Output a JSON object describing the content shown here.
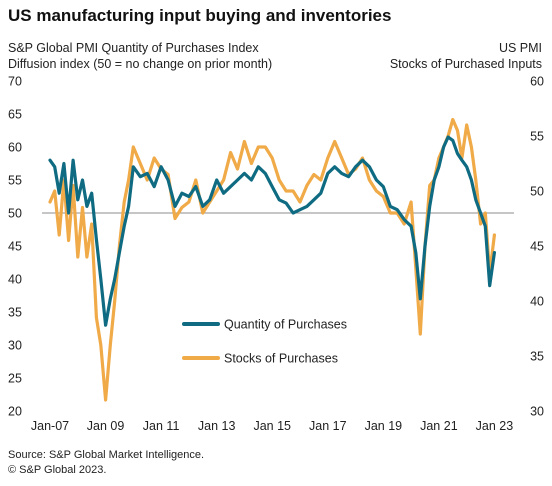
{
  "header": {
    "title": "US manufacturing input buying and inventories",
    "left_line1": "S&P Global PMI Quantity of Purchases Index",
    "left_line2": "Diffusion index (50 = no change on prior month)",
    "right_line1": "US PMI",
    "right_line2": "Stocks of Purchased Inputs"
  },
  "footer": {
    "source": "Source: S&P Global Market Intelligence.",
    "copyright": "© S&P Global 2023."
  },
  "colors": {
    "quantity": "#0f6b82",
    "stocks": "#f0aa48",
    "reference": "#8c8c8c",
    "text": "#222222"
  },
  "chart_data": {
    "type": "line",
    "title": "US manufacturing input buying and inventories",
    "xlabel": "",
    "ylabel_left": "S&P Global PMI Quantity of Purchases Index",
    "ylabel_right": "US PMI Stocks of Purchased Inputs",
    "x_ticks": [
      "Jan-07",
      "Jan 09",
      "Jan 11",
      "Jan 13",
      "Jan 15",
      "Jan 17",
      "Jan 19",
      "Jan 21",
      "Jan 23"
    ],
    "x_tick_years": [
      2007,
      2009,
      2011,
      2013,
      2015,
      2017,
      2019,
      2021,
      2023
    ],
    "xlim": [
      2007.0,
      2023.2
    ],
    "ylim_left": [
      20,
      70
    ],
    "ylim_right": [
      30,
      60
    ],
    "y_ticks_left": [
      20,
      25,
      30,
      35,
      40,
      45,
      50,
      55,
      60,
      65,
      70
    ],
    "y_ticks_right": [
      30,
      35,
      40,
      45,
      50,
      55,
      60
    ],
    "reference_line": 50,
    "grid": false,
    "legend_position": "lower-center",
    "series": [
      {
        "name": "Quantity of Purchases",
        "axis": "left",
        "x": [
          2007.0,
          2007.17,
          2007.33,
          2007.5,
          2007.67,
          2007.83,
          2008.0,
          2008.17,
          2008.33,
          2008.5,
          2008.67,
          2008.83,
          2009.0,
          2009.17,
          2009.33,
          2009.5,
          2009.67,
          2009.83,
          2010.0,
          2010.25,
          2010.5,
          2010.75,
          2011.0,
          2011.25,
          2011.5,
          2011.75,
          2012.0,
          2012.25,
          2012.5,
          2012.75,
          2013.0,
          2013.25,
          2013.5,
          2013.75,
          2014.0,
          2014.25,
          2014.5,
          2014.75,
          2015.0,
          2015.25,
          2015.5,
          2015.75,
          2016.0,
          2016.25,
          2016.5,
          2016.75,
          2017.0,
          2017.25,
          2017.5,
          2017.75,
          2018.0,
          2018.25,
          2018.5,
          2018.75,
          2019.0,
          2019.25,
          2019.5,
          2019.75,
          2020.0,
          2020.17,
          2020.33,
          2020.5,
          2020.67,
          2020.83,
          2021.0,
          2021.17,
          2021.33,
          2021.5,
          2021.67,
          2021.83,
          2022.0,
          2022.17,
          2022.33,
          2022.5,
          2022.67,
          2022.83,
          2023.0
        ],
        "values": [
          58.0,
          57.0,
          53.0,
          57.5,
          50.0,
          58.0,
          52.0,
          55.0,
          51.0,
          53.0,
          46.0,
          40.0,
          33.0,
          37.0,
          40.0,
          44.0,
          48.0,
          51.0,
          57.0,
          55.5,
          56.0,
          54.0,
          57.0,
          55.0,
          51.0,
          53.0,
          52.5,
          54.0,
          51.0,
          52.0,
          55.0,
          53.0,
          54.0,
          55.0,
          56.0,
          55.0,
          57.0,
          56.0,
          54.0,
          52.0,
          51.5,
          50.0,
          50.5,
          51.0,
          52.0,
          53.0,
          56.0,
          57.0,
          56.0,
          55.5,
          57.0,
          58.0,
          57.0,
          55.0,
          54.0,
          51.0,
          50.5,
          49.0,
          48.0,
          44.0,
          37.0,
          45.0,
          51.0,
          55.0,
          57.0,
          60.0,
          61.5,
          61.0,
          59.0,
          58.0,
          57.0,
          55.0,
          52.0,
          50.0,
          48.0,
          39.0,
          44.0
        ]
      },
      {
        "name": "Stocks of Purchases",
        "axis": "right",
        "x": [
          2007.0,
          2007.17,
          2007.33,
          2007.5,
          2007.67,
          2007.83,
          2008.0,
          2008.17,
          2008.33,
          2008.5,
          2008.67,
          2008.83,
          2009.0,
          2009.17,
          2009.33,
          2009.5,
          2009.67,
          2009.83,
          2010.0,
          2010.25,
          2010.5,
          2010.75,
          2011.0,
          2011.25,
          2011.5,
          2011.75,
          2012.0,
          2012.25,
          2012.5,
          2012.75,
          2013.0,
          2013.25,
          2013.5,
          2013.75,
          2014.0,
          2014.25,
          2014.5,
          2014.75,
          2015.0,
          2015.25,
          2015.5,
          2015.75,
          2016.0,
          2016.25,
          2016.5,
          2016.75,
          2017.0,
          2017.25,
          2017.5,
          2017.75,
          2018.0,
          2018.25,
          2018.5,
          2018.75,
          2019.0,
          2019.25,
          2019.5,
          2019.75,
          2020.0,
          2020.17,
          2020.33,
          2020.5,
          2020.67,
          2020.83,
          2021.0,
          2021.17,
          2021.33,
          2021.5,
          2021.67,
          2021.83,
          2022.0,
          2022.17,
          2022.33,
          2022.5,
          2022.67,
          2022.83,
          2023.0
        ],
        "values": [
          49.0,
          50.0,
          46.0,
          51.0,
          45.5,
          50.5,
          44.0,
          48.5,
          44.0,
          47.0,
          38.5,
          36.0,
          31.0,
          36.0,
          40.0,
          45.0,
          49.0,
          51.0,
          54.0,
          52.5,
          51.0,
          53.0,
          52.0,
          51.5,
          47.5,
          48.5,
          49.0,
          51.0,
          48.0,
          49.0,
          50.0,
          51.0,
          53.5,
          52.0,
          54.5,
          52.5,
          54.0,
          54.0,
          53.0,
          51.0,
          50.0,
          50.0,
          49.0,
          50.5,
          51.5,
          51.0,
          53.0,
          54.5,
          53.0,
          51.5,
          52.0,
          53.0,
          51.0,
          50.0,
          49.5,
          48.0,
          48.0,
          47.0,
          49.0,
          43.0,
          37.0,
          45.0,
          50.5,
          51.0,
          53.0,
          54.0,
          55.0,
          56.5,
          55.5,
          53.0,
          56.0,
          54.0,
          51.0,
          47.0,
          48.0,
          42.5,
          46.0
        ]
      }
    ]
  }
}
